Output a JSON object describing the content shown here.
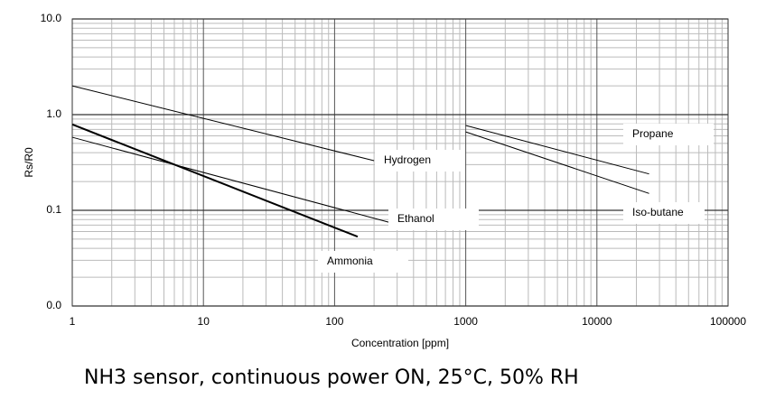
{
  "chart_data": {
    "type": "line",
    "caption": "NH3 sensor, continuous power ON, 25°C, 50% RH",
    "xlabel": "Concentration [ppm]",
    "ylabel": "Rs/R0",
    "xscale": "log",
    "yscale": "log",
    "grid": true,
    "minor_grid": true,
    "xlim": [
      1,
      100000
    ],
    "xticks": [
      1,
      10,
      100,
      1000,
      10000,
      100000
    ],
    "ylim": [
      0.01,
      10
    ],
    "yticks": [
      {
        "value": 0.01,
        "label": "0.0"
      },
      0.1,
      {
        "value": 1,
        "label": "1.0"
      },
      {
        "value": 10,
        "label": "10.0"
      }
    ],
    "series": [
      {
        "name": "Hydrogen",
        "color": "#000000",
        "line_width": 1,
        "x": [
          1,
          200
        ],
        "values": [
          2.0,
          0.33
        ]
      },
      {
        "name": "Ethanol",
        "color": "#000000",
        "line_width": 1,
        "x": [
          1,
          260
        ],
        "values": [
          0.58,
          0.075
        ]
      },
      {
        "name": "Ammonia",
        "color": "#000000",
        "line_width": 2,
        "x": [
          1,
          150
        ],
        "values": [
          0.79,
          0.053
        ]
      },
      {
        "name": "Propane",
        "color": "#000000",
        "line_width": 1,
        "x": [
          1000,
          25000
        ],
        "values": [
          0.77,
          0.24
        ]
      },
      {
        "name": "Iso-butane",
        "color": "#000000",
        "line_width": 1,
        "x": [
          1000,
          25000
        ],
        "values": [
          0.66,
          0.15
        ]
      }
    ]
  }
}
